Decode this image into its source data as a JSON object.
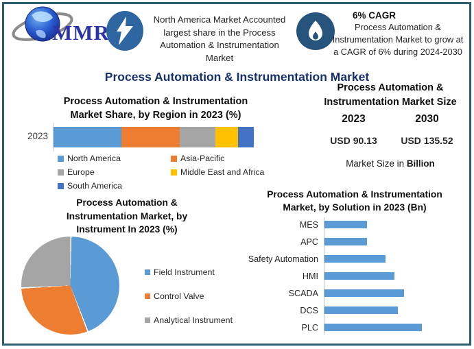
{
  "branding": {
    "logo_text": "MMR"
  },
  "header": {
    "highlight_card": {
      "icon": "lightning-icon",
      "text": "North America Market Accounted largest share in the Process Automation & Instrumentation Market"
    },
    "cagr_card": {
      "icon": "flame-icon",
      "heading": "6% CAGR",
      "text": "Process Automation & Instrumentation Market to grow at a CAGR of 6% during 2024-2030"
    }
  },
  "main_title": "Process Automation & Instrumentation Market",
  "market_size_panel": {
    "title_lines": [
      "Process Automation &",
      "Instrumentation Market Size"
    ],
    "columns": [
      {
        "year": "2023",
        "value": "USD 90.13"
      },
      {
        "year": "2030",
        "value": "USD 135.52"
      }
    ],
    "note_prefix": "Market Size in ",
    "note_bold": "Billion",
    "value_color": "#2E75B6",
    "unit": "USD Billion"
  },
  "colors": {
    "frame_border": "#2b5e6e",
    "accent_navy": "#17316f",
    "icon_badge_blue": "#2d66a0",
    "icon_badge_dark_blue": "#27547d",
    "series_blue": "#5B9BD5",
    "series_orange": "#ED7D31",
    "series_gray": "#A5A5A5",
    "series_yellow": "#FFC000",
    "series_dark_blue": "#4472C4"
  },
  "chart_data": [
    {
      "type": "bar",
      "subtype": "stacked-horizontal",
      "title": "Process Automation & Instrumentation Market Share, by Region in 2023 (%)",
      "title_lines": [
        "Process Automation & Instrumentation",
        "Market Share, by Region in 2023 (%)"
      ],
      "categories": [
        "2023"
      ],
      "series": [
        {
          "name": "North America",
          "values": [
            34
          ],
          "color": "#5B9BD5"
        },
        {
          "name": "Asia-Pacific",
          "values": [
            29
          ],
          "color": "#ED7D31"
        },
        {
          "name": "Europe",
          "values": [
            18
          ],
          "color": "#A5A5A5"
        },
        {
          "name": "Middle East and Africa",
          "values": [
            11
          ],
          "color": "#FFC000"
        },
        {
          "name": "South America",
          "values": [
            8
          ],
          "color": "#4472C4"
        }
      ],
      "unit": "%",
      "xlim": [
        0,
        100
      ],
      "legend_position": "bottom",
      "grid": false,
      "note": "segment sizes estimated from pixel widths; no data labels shown"
    },
    {
      "type": "pie",
      "title": "Process Automation & Instrumentation Market, by Instrument In 2023 (%)",
      "title_lines": [
        "Process Automation &",
        "Instrumentation Market, by",
        "Instrument In 2023 (%)"
      ],
      "slices": [
        {
          "name": "Field Instrument",
          "value": 44,
          "color": "#5B9BD5"
        },
        {
          "name": "Control Valve",
          "value": 30,
          "color": "#ED7D31"
        },
        {
          "name": "Analytical Instrument",
          "value": 26,
          "color": "#A5A5A5"
        }
      ],
      "start_angle_deg": 0,
      "unit": "%",
      "legend_position": "right",
      "note": "slice sizes estimated from angles; no data labels shown"
    },
    {
      "type": "bar",
      "subtype": "horizontal",
      "title": "Process Automation & Instrumentation Market, by Solution in 2023 (Bn)",
      "title_lines": [
        "Process Automation & Instrumentation",
        "Market, by Solution in 2023 (Bn)"
      ],
      "categories": [
        "MES",
        "APC",
        "Safety Automation",
        "HMI",
        "SCADA",
        "DCS",
        "PLC"
      ],
      "values": [
        44,
        44,
        63,
        72,
        82,
        75,
        100
      ],
      "color": "#5B9BD5",
      "unit": "Bn (relative, longest bar = 100)",
      "grid": false,
      "note": "bar lengths relative; no numeric axis labels shown"
    }
  ]
}
